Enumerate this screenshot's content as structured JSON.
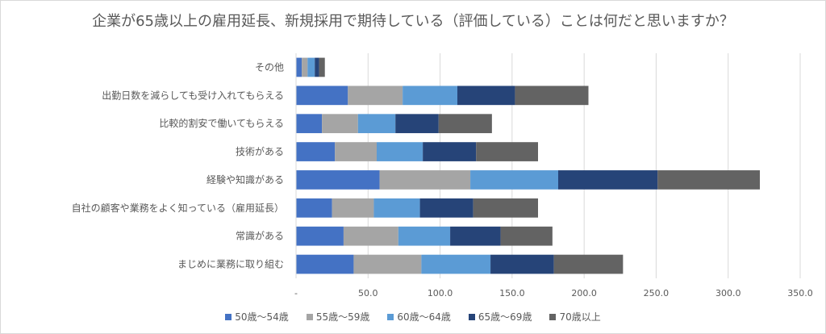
{
  "title": "企業が65歳以上の雇用延長、新規採用で期待している（評価している）ことは何だと思いますか？",
  "chart_data": {
    "type": "bar",
    "orientation": "horizontal",
    "stacked": true,
    "categories": [
      "その他",
      "出勤日数を減らしても受け入れてもらえる",
      "比較的割安で働いてもらえる",
      "技術がある",
      "経験や知識がある",
      "自社の顧客や業務をよく知っている（雇用延長）",
      "常識がある",
      "まじめに業務に取り組む"
    ],
    "series": [
      {
        "name": "50歳～54歳",
        "color": "#4472c4",
        "values": [
          4,
          36,
          18,
          27,
          58,
          25,
          33,
          40
        ]
      },
      {
        "name": "55歳～59歳",
        "color": "#a5a5a5",
        "values": [
          4,
          38,
          25,
          29,
          63,
          29,
          38,
          47
        ]
      },
      {
        "name": "60歳～64歳",
        "color": "#5b9bd5",
        "values": [
          5,
          38,
          26,
          32,
          61,
          32,
          36,
          48
        ]
      },
      {
        "name": "65歳～69歳",
        "color": "#264478",
        "values": [
          3,
          40,
          30,
          37,
          69,
          37,
          35,
          44
        ]
      },
      {
        "name": "70歳以上",
        "color": "#636363",
        "values": [
          4,
          51,
          37,
          43,
          71,
          45,
          36,
          48
        ]
      }
    ],
    "x_ticks": [
      "-",
      "50.0",
      "100.0",
      "150.0",
      "200.0",
      "250.0",
      "300.0",
      "350.0"
    ],
    "xlim": [
      0,
      350
    ],
    "grid": true,
    "legend_position": "bottom"
  }
}
